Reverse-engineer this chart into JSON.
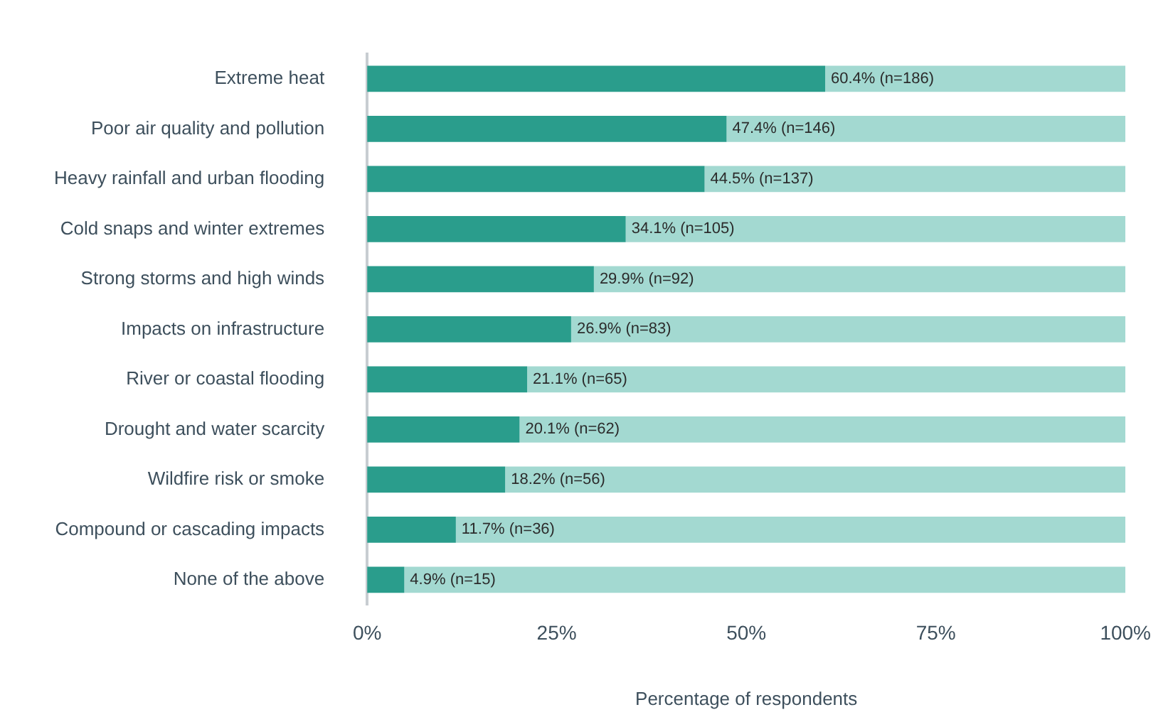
{
  "chart_data": {
    "type": "bar",
    "orientation": "horizontal",
    "stacked": true,
    "categories": [
      "Extreme heat",
      "Poor air quality and pollution",
      "Heavy rainfall and urban flooding",
      "Cold snaps and winter extremes",
      "Strong storms and high winds",
      "Impacts on infrastructure",
      "River or coastal flooding",
      "Drought and water scarcity",
      "Wildfire risk or smoke",
      "Compound or cascading impacts",
      "None of the above"
    ],
    "series": [
      {
        "color": "#2a9d8c",
        "values": [
          60.4,
          47.4,
          44.5,
          34.1,
          29.9,
          26.9,
          21.1,
          20.1,
          18.2,
          11.7,
          4.9
        ],
        "value_labels": [
          "60.4% (n=186)",
          "47.4% (n=146)",
          "44.5% (n=137)",
          "34.1% (n=105)",
          "29.9% (n=92)",
          "26.9% (n=83)",
          "21.1% (n=65)",
          "20.1% (n=62)",
          "18.2% (n=56)",
          "11.7% (n=36)",
          "4.9% (n=15)"
        ]
      },
      {
        "color": "#a3d9d1",
        "values": [
          39.6,
          52.6,
          55.5,
          65.9,
          70.1,
          73.1,
          78.9,
          79.9,
          81.8,
          88.3,
          95.1
        ]
      }
    ],
    "xlabel": "Percentage of respondents",
    "xlim": [
      0,
      100
    ],
    "xticks": [
      {
        "value": 0,
        "label": "0%"
      },
      {
        "value": 25,
        "label": "25%"
      },
      {
        "value": 50,
        "label": "50%"
      },
      {
        "value": 75,
        "label": "75%"
      },
      {
        "value": 100,
        "label": "100%"
      }
    ],
    "grid": false,
    "legend": false
  }
}
